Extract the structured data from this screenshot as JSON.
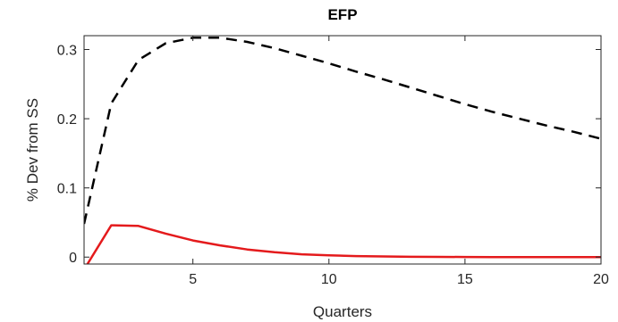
{
  "chart_data": {
    "type": "line",
    "title": "EFP",
    "xlabel": "Quarters",
    "ylabel": "% Dev from SS",
    "xlim": [
      1,
      20
    ],
    "ylim": [
      -0.01,
      0.32
    ],
    "xticks": [
      5,
      10,
      15,
      20
    ],
    "yticks": [
      0,
      0.1,
      0.2,
      0.3
    ],
    "xtick_labels": [
      "5",
      "10",
      "15",
      "20"
    ],
    "ytick_labels": [
      "0",
      "0.1",
      "0.2",
      "0.3"
    ],
    "grid": false,
    "series": [
      {
        "style": "dashed",
        "color": "#000000",
        "x": [
          1,
          2,
          3,
          4,
          5,
          6,
          7,
          8,
          9,
          10,
          11,
          12,
          13,
          14,
          15,
          16,
          17,
          18,
          19,
          20
        ],
        "y": [
          0.048,
          0.222,
          0.285,
          0.309,
          0.317,
          0.317,
          0.311,
          0.302,
          0.291,
          0.28,
          0.268,
          0.257,
          0.245,
          0.233,
          0.221,
          0.21,
          0.2,
          0.19,
          0.181,
          0.171
        ]
      },
      {
        "style": "solid",
        "color": "#e41a1c",
        "x": [
          1,
          2,
          3,
          4,
          5,
          6,
          7,
          8,
          9,
          10,
          11,
          12,
          13,
          14,
          15,
          16,
          17,
          18,
          19,
          20
        ],
        "y": [
          -0.018,
          0.046,
          0.045,
          0.034,
          0.024,
          0.017,
          0.011,
          0.007,
          0.004,
          0.0025,
          0.0015,
          0.001,
          0.0005,
          0.0003,
          0.0002,
          0.0001,
          0,
          0,
          0,
          0
        ]
      }
    ]
  }
}
